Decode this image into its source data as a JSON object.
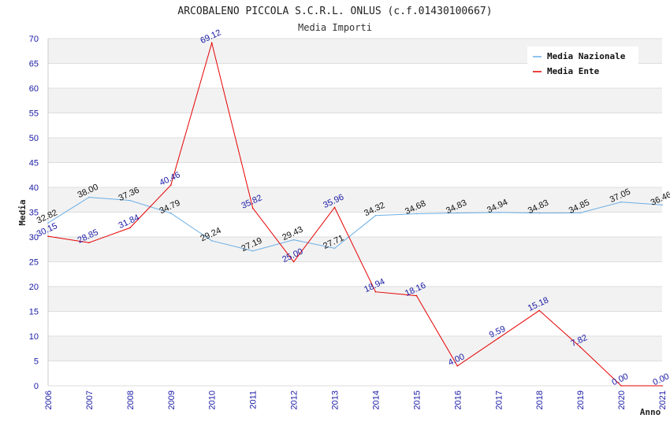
{
  "chart_data": {
    "type": "line",
    "title": "ARCOBALENO PICCOLA S.C.R.L. ONLUS (c.f.01430100667)",
    "subtitle": "Media Importi",
    "xlabel": "Anno",
    "ylabel": "Media",
    "ylim": [
      0,
      70
    ],
    "ytick_step": 5,
    "grid": true,
    "legend_position": "top-right",
    "categories": [
      "2006",
      "2007",
      "2008",
      "2009",
      "2010",
      "2011",
      "2012",
      "2013",
      "2014",
      "2015",
      "2016",
      "2017",
      "2018",
      "2019",
      "2020",
      "2021"
    ],
    "series": [
      {
        "name": "Media Nazionale",
        "color": "#6aaee6",
        "values": [
          32.82,
          38.0,
          37.36,
          34.79,
          29.24,
          27.19,
          29.43,
          27.71,
          34.32,
          34.68,
          34.83,
          34.94,
          34.83,
          34.85,
          37.05,
          36.46
        ],
        "labels": [
          "32.82",
          "38.00",
          "37.36",
          "34.79",
          "29.24",
          "27.19",
          "29.43",
          "27.71",
          "34.32",
          "34.68",
          "34.83",
          "34.94",
          "34.83",
          "34.85",
          "37.05",
          "36.46"
        ]
      },
      {
        "name": "Media Ente",
        "color": "#e60000",
        "values": [
          30.15,
          28.85,
          31.84,
          40.46,
          69.12,
          35.82,
          25.0,
          35.96,
          18.94,
          18.16,
          4.0,
          9.59,
          15.18,
          7.82,
          0.0,
          0.0
        ],
        "labels": [
          "30.15",
          "28.85",
          "31.84",
          "40.46",
          "69.12",
          "35.82",
          "25.00",
          "35.96",
          "18.94",
          "18.16",
          "4.00",
          "9.59",
          "15.18",
          "7.82",
          "0.00",
          "0.00"
        ]
      }
    ]
  }
}
